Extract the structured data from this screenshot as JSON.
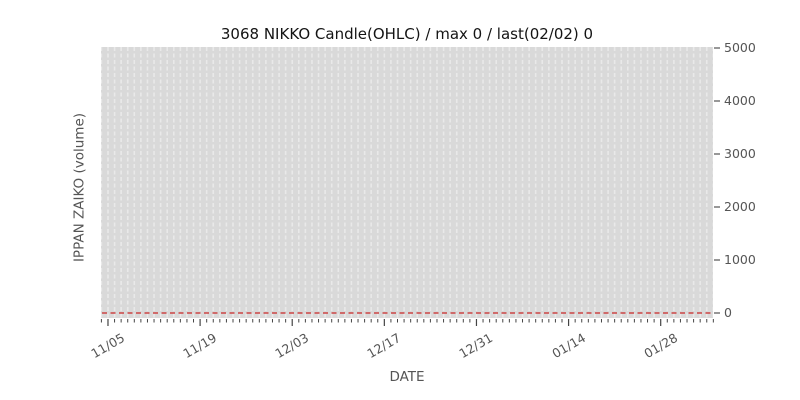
{
  "chart_data": {
    "type": "candlestick",
    "title": "3068 NIKKO Candle(OHLC) / max 0 / last(02/02) 0",
    "xlabel": "DATE",
    "ylabel": "IPPAN ZAIKO (volume)",
    "x_major_ticks": [
      "11/05",
      "11/19",
      "12/03",
      "12/17",
      "12/31",
      "01/14",
      "01/28"
    ],
    "x_minor_tick_interval": "1 day",
    "x_minor_tick_count": 94,
    "x_major_tick_interval": "14 days",
    "y_ticks": [
      0,
      1000,
      2000,
      3000,
      4000,
      5000
    ],
    "ylim": [
      0,
      5000
    ],
    "y_axis_side": "right",
    "legend": "none",
    "grid": {
      "vertical": "dashed, one line per day",
      "horizontal": "none"
    },
    "series": [
      {
        "name": "3068 NIKKO volume (all zero)",
        "style": "dashed horizontal line",
        "y_constant": 0,
        "color": "#cc4444"
      }
    ],
    "stats_from_title": {
      "symbol": "3068",
      "name": "NIKKO",
      "max": 0,
      "last_date": "02/02",
      "last_value": 0
    },
    "colors": {
      "plot_bg": "#d9d9d9",
      "grid_dash": "#e9e9e9",
      "zero_line": "#cc4444",
      "tick_text": "#555555",
      "title_text": "#141414",
      "tick_mark": "#444444"
    }
  }
}
